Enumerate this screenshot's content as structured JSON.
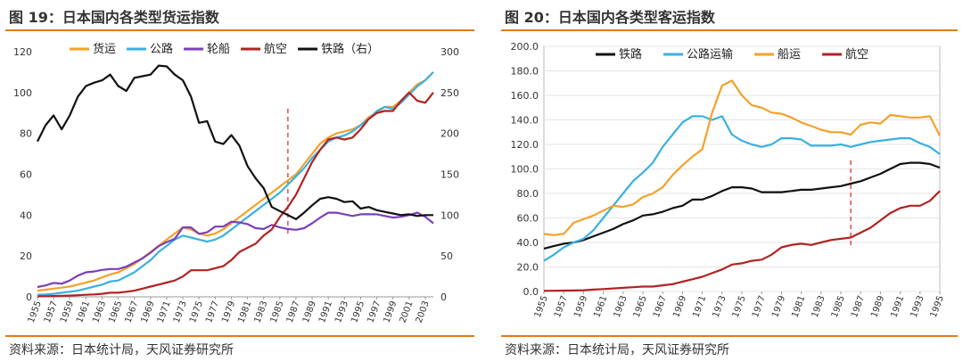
{
  "chart_data": [
    {
      "type": "line",
      "title": "图 19：日本国内各类型货运指数",
      "source": "资料来源：日本统计局，天风证券研究所",
      "x": [
        1955,
        1956,
        1957,
        1958,
        1959,
        1960,
        1961,
        1962,
        1963,
        1964,
        1965,
        1966,
        1967,
        1968,
        1969,
        1970,
        1971,
        1972,
        1973,
        1974,
        1975,
        1976,
        1977,
        1978,
        1979,
        1980,
        1981,
        1982,
        1983,
        1984,
        1985,
        1986,
        1987,
        1988,
        1989,
        1990,
        1991,
        1992,
        1993,
        1994,
        1995,
        1996,
        1997,
        1998,
        1999,
        2000,
        2001,
        2002,
        2003,
        2004
      ],
      "x_tick_labels": [
        "1955",
        "1957",
        "1959",
        "1961",
        "1963",
        "1965",
        "1967",
        "1969",
        "1971",
        "1973",
        "1975",
        "1977",
        "1979",
        "1981",
        "1983",
        "1985",
        "1987",
        "1989",
        "1991",
        "1993",
        "1995",
        "1997",
        "1999",
        "2001",
        "2003"
      ],
      "ylim": [
        0,
        120
      ],
      "yticks": [
        0,
        20,
        40,
        60,
        80,
        100,
        120
      ],
      "y2lim": [
        0,
        300
      ],
      "y2ticks": [
        0,
        50,
        100,
        150,
        200,
        250,
        300
      ],
      "reference_line_x": 1986,
      "series": [
        {
          "name": "货运",
          "color": "#f4a12a",
          "axis": "left",
          "values": [
            3,
            3.5,
            4,
            4.5,
            5,
            6,
            7,
            8,
            9.5,
            11,
            12,
            14,
            16,
            19,
            22,
            25,
            28,
            31,
            34,
            33,
            31,
            30,
            31,
            33,
            36,
            39,
            42,
            45,
            48,
            51,
            54,
            57,
            60,
            65,
            70,
            75,
            78,
            80,
            81,
            82,
            84,
            88,
            90,
            93,
            93,
            96,
            100,
            104,
            106,
            110
          ]
        },
        {
          "name": "公路",
          "color": "#3ab0e2",
          "axis": "left",
          "values": [
            1,
            1.2,
            1.5,
            2,
            2.5,
            3,
            4,
            5,
            6,
            7.5,
            8,
            10,
            12,
            15,
            18,
            22,
            25,
            28,
            30,
            29,
            28,
            27,
            28,
            30,
            33,
            36,
            39,
            42,
            45,
            48,
            51,
            55,
            59,
            63,
            68,
            72,
            76,
            78,
            79,
            81,
            84,
            87,
            91,
            93,
            92,
            95,
            99,
            103,
            106,
            110
          ]
        },
        {
          "name": "轮船",
          "color": "#7b3fb8",
          "axis": "right",
          "values": [
            12,
            14,
            17,
            16,
            20,
            26,
            30,
            31,
            33,
            34,
            34,
            37,
            42,
            47,
            54,
            62,
            67,
            71,
            85,
            85,
            77,
            79,
            86,
            86,
            92,
            91,
            89,
            84,
            83,
            88,
            85,
            83,
            82,
            84,
            90,
            97,
            103,
            103,
            101,
            99,
            101,
            101,
            101,
            99,
            97,
            98,
            100,
            103,
            98,
            90
          ]
        },
        {
          "name": "航空",
          "color": "#b22222",
          "axis": "left",
          "values": [
            0.2,
            0.3,
            0.4,
            0.5,
            0.6,
            0.8,
            1,
            1.2,
            1.5,
            2,
            2,
            2.5,
            3,
            4,
            5,
            6,
            7,
            8,
            10,
            13,
            13,
            13,
            14,
            15,
            18,
            22,
            24,
            26,
            30,
            33,
            39,
            44,
            50,
            58,
            66,
            72,
            77,
            78,
            77,
            78,
            82,
            87,
            90,
            91,
            91,
            96,
            100,
            96,
            95,
            100
          ]
        },
        {
          "name": "铁路（右）",
          "color": "#111111",
          "axis": "right",
          "values": [
            190,
            210,
            222,
            205,
            222,
            245,
            258,
            262,
            265,
            272,
            258,
            252,
            268,
            270,
            272,
            283,
            282,
            272,
            265,
            245,
            213,
            215,
            190,
            187,
            198,
            185,
            160,
            145,
            133,
            110,
            105,
            100,
            95,
            103,
            112,
            120,
            122,
            120,
            116,
            117,
            108,
            110,
            106,
            104,
            102,
            100,
            101,
            99,
            100,
            100
          ]
        }
      ]
    },
    {
      "type": "line",
      "title": "图 20：日本国内各类型客运指数",
      "source": "资料来源：日本统计局，天风证券研究所",
      "x": [
        1955,
        1956,
        1957,
        1958,
        1959,
        1960,
        1961,
        1962,
        1963,
        1964,
        1965,
        1966,
        1967,
        1968,
        1969,
        1970,
        1971,
        1972,
        1973,
        1974,
        1975,
        1976,
        1977,
        1978,
        1979,
        1980,
        1981,
        1982,
        1983,
        1984,
        1985,
        1986,
        1987,
        1988,
        1989,
        1990,
        1991,
        1992,
        1993,
        1994,
        1995
      ],
      "x_tick_labels": [
        "1955",
        "1957",
        "1959",
        "1961",
        "1963",
        "1965",
        "1967",
        "1969",
        "1971",
        "1973",
        "1975",
        "1977",
        "1979",
        "1981",
        "1983",
        "1985",
        "1987",
        "1989",
        "1991",
        "1993",
        "1995"
      ],
      "ylim": [
        0,
        200
      ],
      "yticks": [
        "0.0",
        "20.0",
        "40.0",
        "60.0",
        "80.0",
        "100.0",
        "120.0",
        "140.0",
        "160.0",
        "180.0",
        "200.0"
      ],
      "reference_line_x": 1986,
      "series": [
        {
          "name": "铁路",
          "color": "#111111",
          "values": [
            35,
            37,
            39,
            40,
            42,
            45,
            48,
            51,
            55,
            58,
            62,
            63,
            65,
            68,
            70,
            75,
            75,
            78,
            82,
            85,
            85,
            84,
            81,
            81,
            81,
            82,
            83,
            83,
            84,
            85,
            86,
            88,
            90,
            93,
            96,
            100,
            104,
            105,
            105,
            104,
            101
          ]
        },
        {
          "name": "公路运输",
          "color": "#3ab0e2",
          "values": [
            25,
            30,
            36,
            40,
            43,
            50,
            60,
            70,
            80,
            90,
            97,
            105,
            118,
            128,
            138,
            143,
            143,
            140,
            143,
            128,
            123,
            120,
            118,
            120,
            125,
            125,
            124,
            119,
            119,
            119,
            120,
            118,
            120,
            122,
            123,
            124,
            125,
            125,
            121,
            118,
            112
          ]
        },
        {
          "name": "船运",
          "color": "#f4a12a",
          "values": [
            47,
            46,
            47,
            56,
            59,
            62,
            66,
            70,
            69,
            71,
            77,
            80,
            85,
            95,
            103,
            110,
            116,
            146,
            168,
            172,
            160,
            152,
            150,
            146,
            145,
            142,
            138,
            135,
            132,
            130,
            130,
            128,
            136,
            138,
            137,
            144,
            143,
            142,
            142,
            143,
            127
          ]
        },
        {
          "name": "航空",
          "color": "#b22222",
          "values": [
            0.5,
            0.6,
            0.7,
            0.8,
            1,
            1.5,
            2,
            2.5,
            3,
            3.5,
            4,
            4,
            5,
            6,
            8,
            10,
            12,
            15,
            18,
            22,
            23,
            25,
            26,
            30,
            36,
            38,
            39,
            38,
            40,
            42,
            43,
            44,
            48,
            52,
            58,
            64,
            68,
            70,
            70,
            74,
            82
          ]
        }
      ]
    }
  ]
}
